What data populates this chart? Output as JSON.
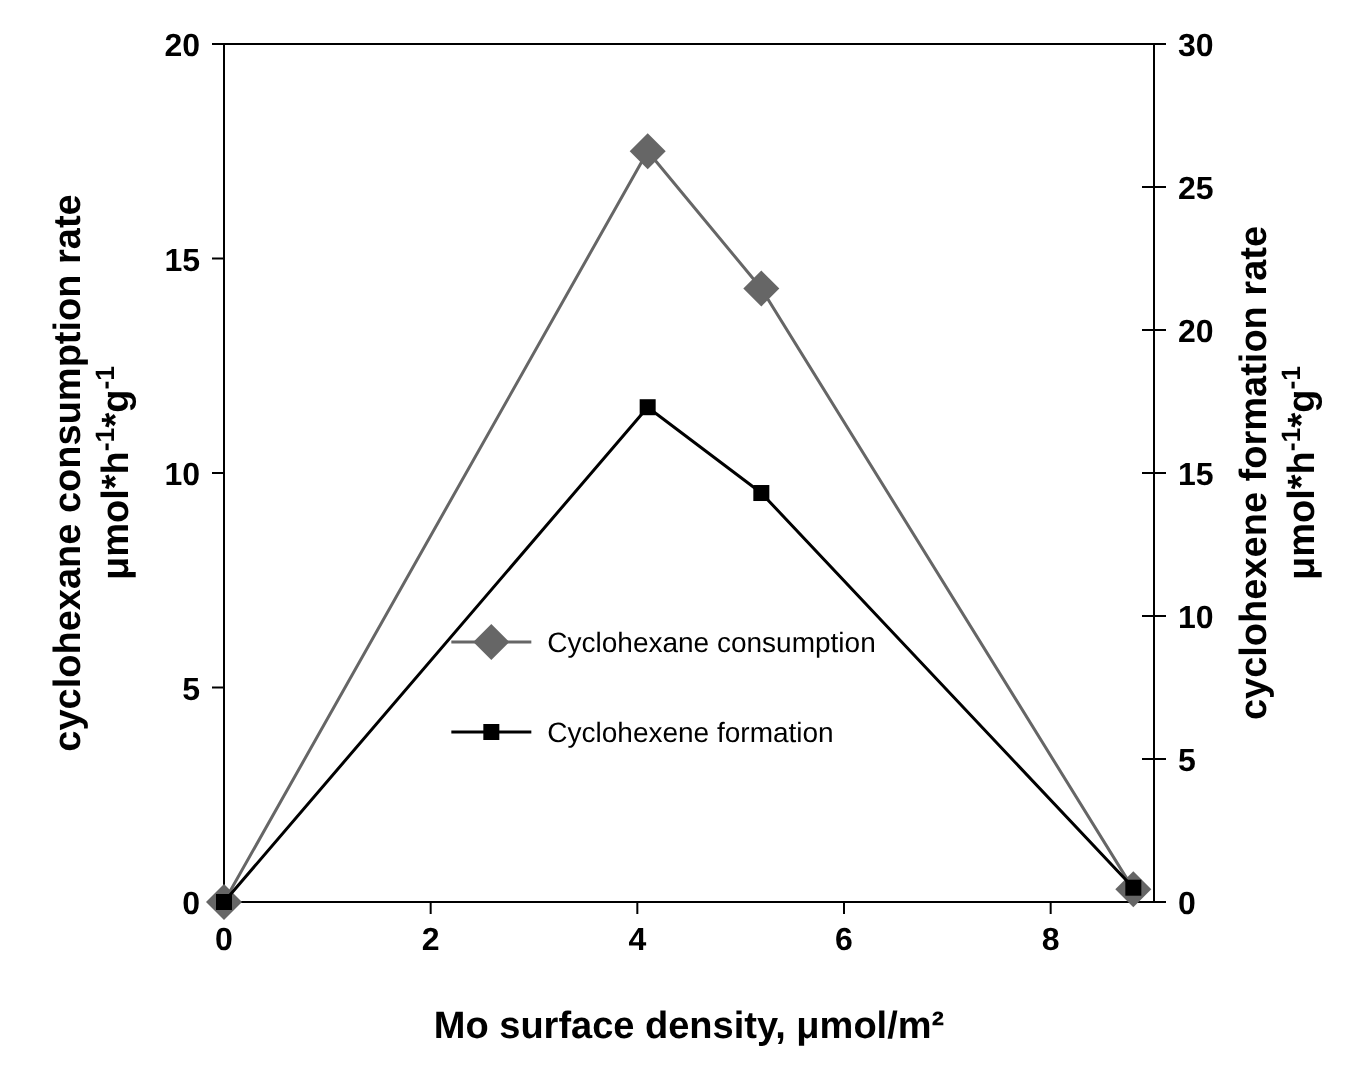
{
  "chart_data": {
    "type": "line",
    "xlabel": "Mo surface density, μmol/m²",
    "ylabel": "cyclohexane consumption rate\nμmol*h$^{-1}$*g$^{-1}$",
    "y2label": "cyclohexene formation rate\nμmol*h$^{-1}$*g$^{-1}$",
    "x": [
      0,
      4.1,
      5.2,
      8.8
    ],
    "xlim": [
      0,
      9
    ],
    "xticks": [
      0,
      2,
      4,
      6,
      8
    ],
    "ylim": [
      0,
      20
    ],
    "yticks": [
      0,
      5,
      10,
      15,
      20
    ],
    "y2lim": [
      0,
      30
    ],
    "y2ticks": [
      0,
      5,
      10,
      15,
      20,
      25,
      30
    ],
    "legend": "bottom",
    "grid": false,
    "series": [
      {
        "name": "Cyclohexane consumption",
        "color": "#666666",
        "marker": "diamond",
        "values": [
          0,
          17.5,
          14.3,
          0.3
        ]
      },
      {
        "name": "Cyclohexene formation",
        "color": "#000000",
        "marker": "square",
        "axis": "y2",
        "values": [
          0,
          17.3,
          14.3,
          0.5
        ]
      }
    ]
  }
}
